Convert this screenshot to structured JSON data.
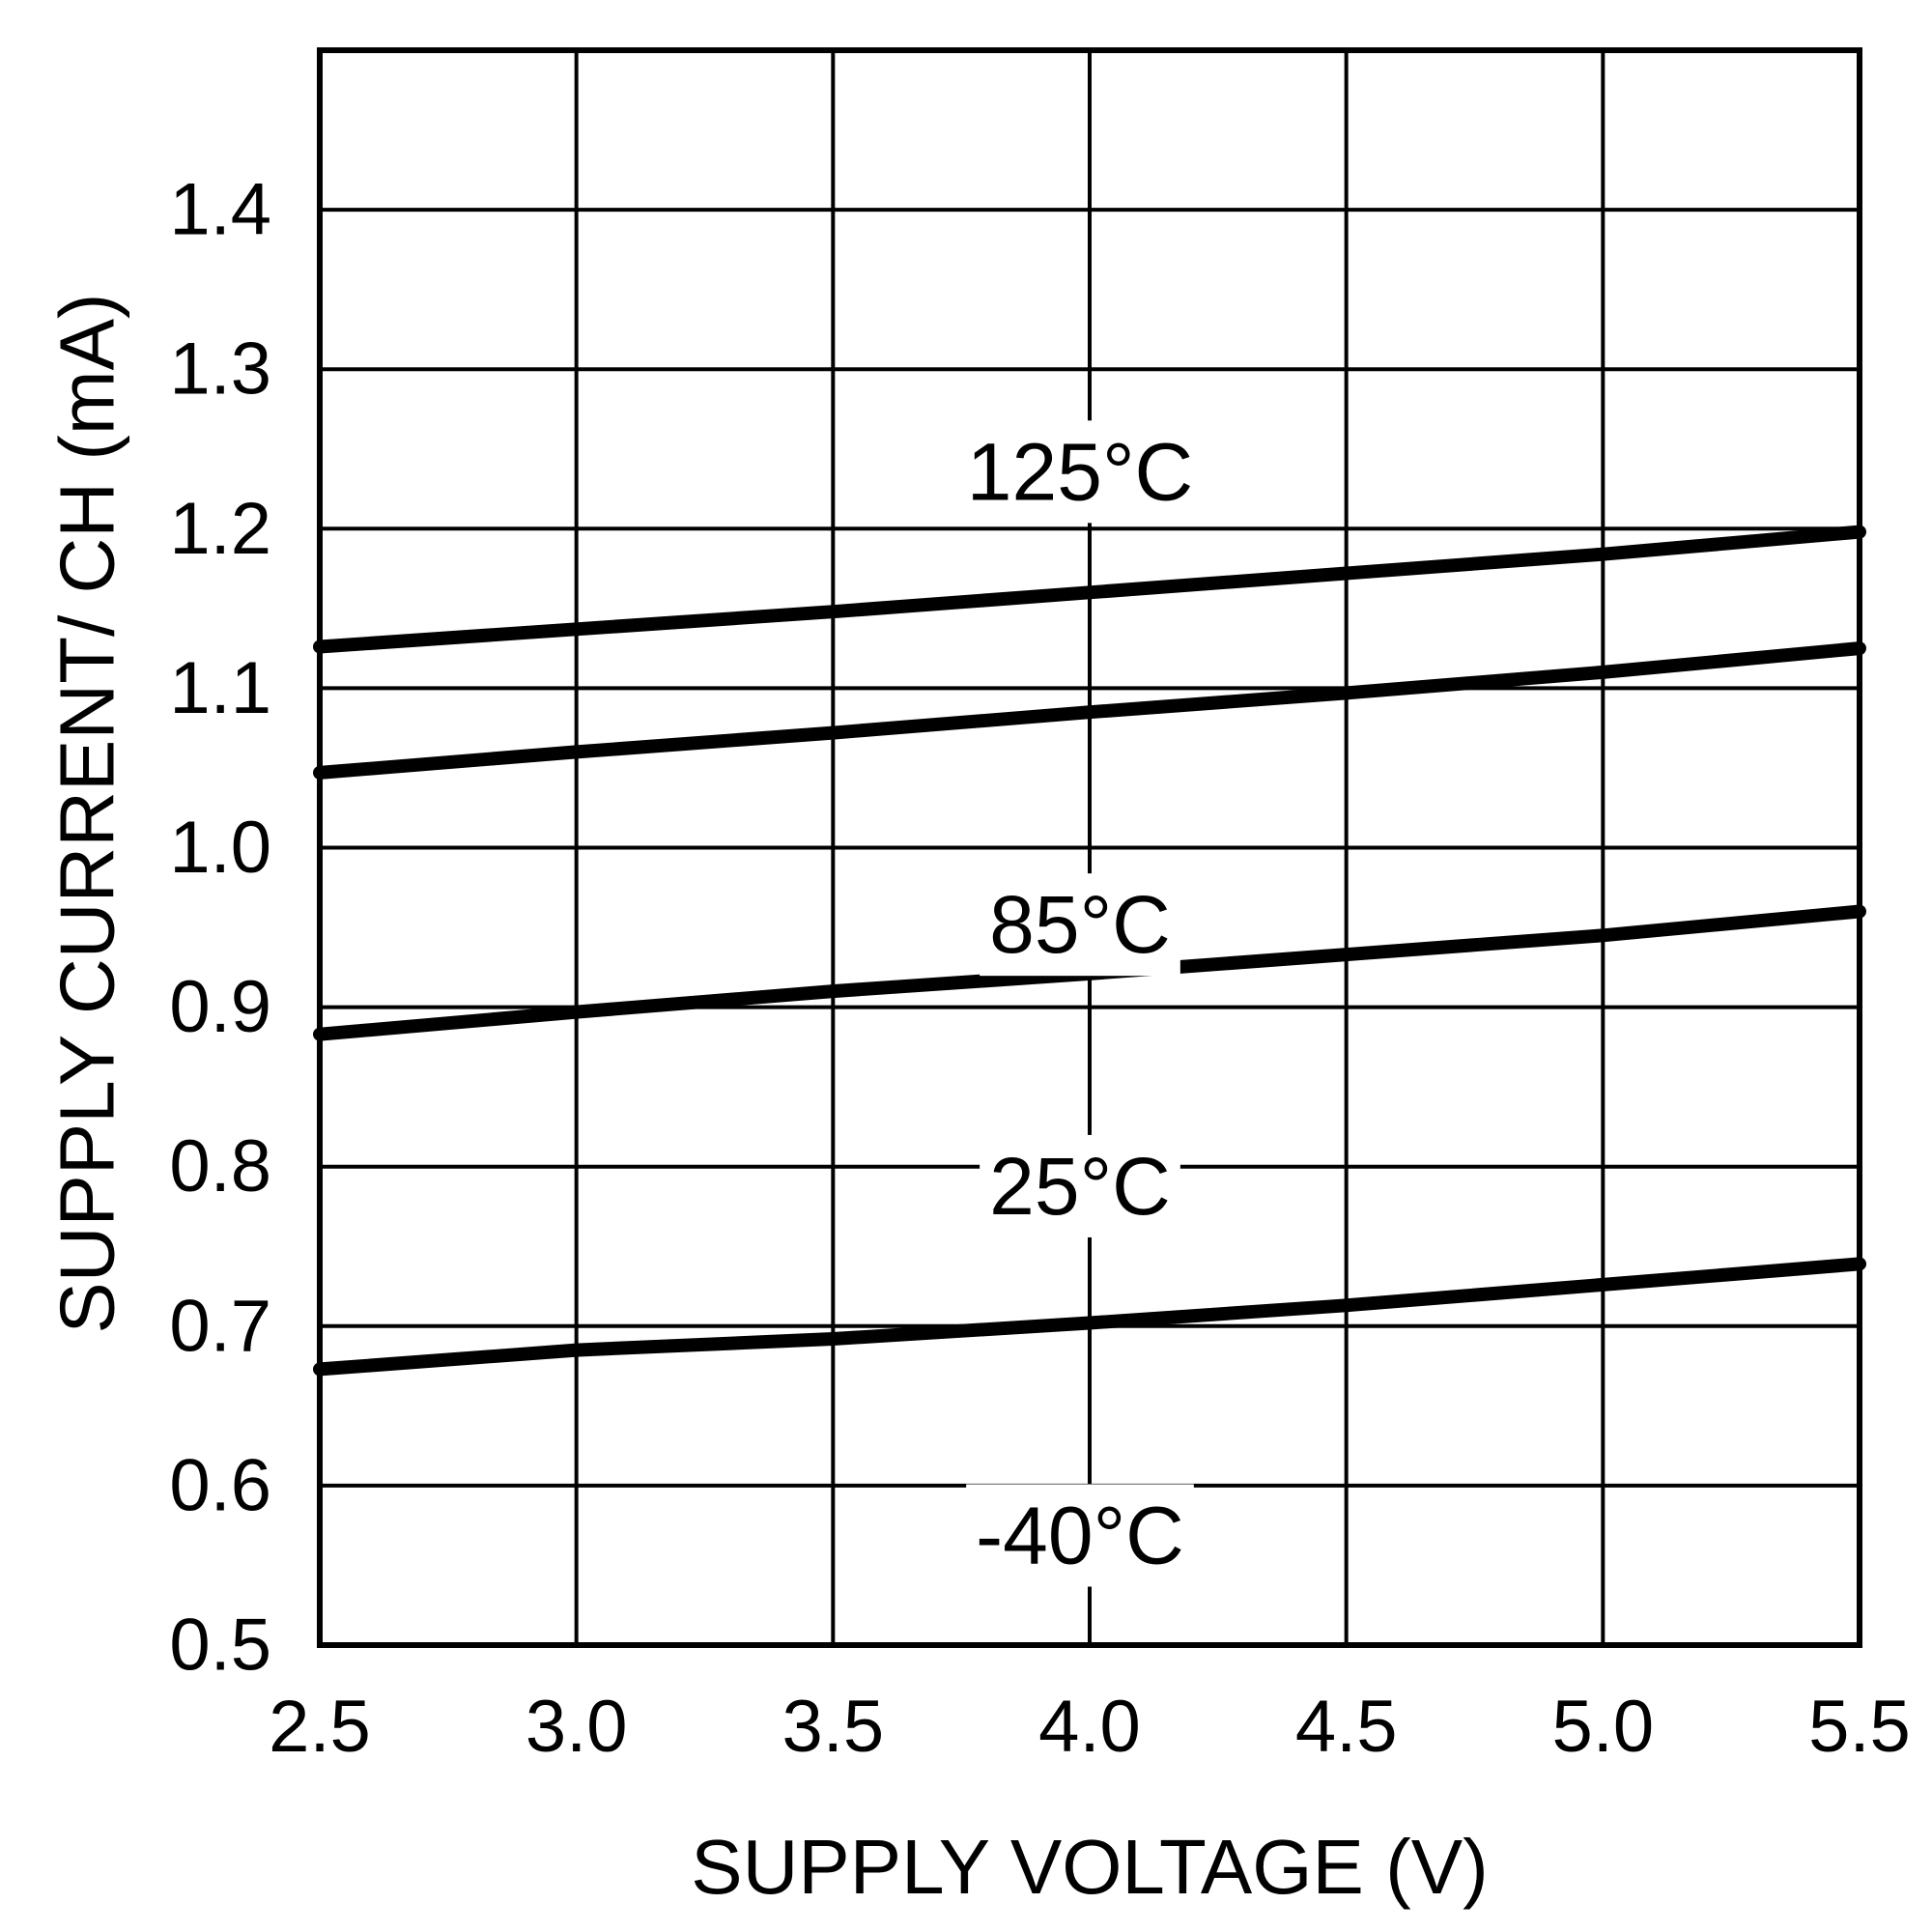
{
  "chart_data": {
    "type": "line",
    "title": "",
    "xlabel": "SUPPLY VOLTAGE (V)",
    "ylabel": "SUPPLY CURRENT/ CH (mA)",
    "xlim": [
      2.5,
      5.5
    ],
    "ylim": [
      0.5,
      1.5
    ],
    "x_ticks": [
      "2.5",
      "3.0",
      "3.5",
      "4.0",
      "4.5",
      "5.0",
      "5.5"
    ],
    "y_ticks": [
      "0.5",
      "0.6",
      "0.7",
      "0.8",
      "0.9",
      "1.0",
      "1.1",
      "1.2",
      "1.3",
      "1.4"
    ],
    "grid": true,
    "legend": "none",
    "x": [
      2.5,
      3.0,
      3.5,
      4.0,
      4.5,
      5.0,
      5.5
    ],
    "series": [
      {
        "name": "125°C",
        "values": [
          1.126,
          1.137,
          1.148,
          1.16,
          1.172,
          1.184,
          1.198
        ]
      },
      {
        "name": "85°C",
        "values": [
          1.047,
          1.06,
          1.072,
          1.085,
          1.097,
          1.11,
          1.125
        ]
      },
      {
        "name": "25°C",
        "values": [
          0.883,
          0.897,
          0.91,
          0.921,
          0.933,
          0.945,
          0.96
        ]
      },
      {
        "name": "-40°C",
        "values": [
          0.673,
          0.685,
          0.692,
          0.702,
          0.713,
          0.726,
          0.739
        ]
      }
    ]
  }
}
